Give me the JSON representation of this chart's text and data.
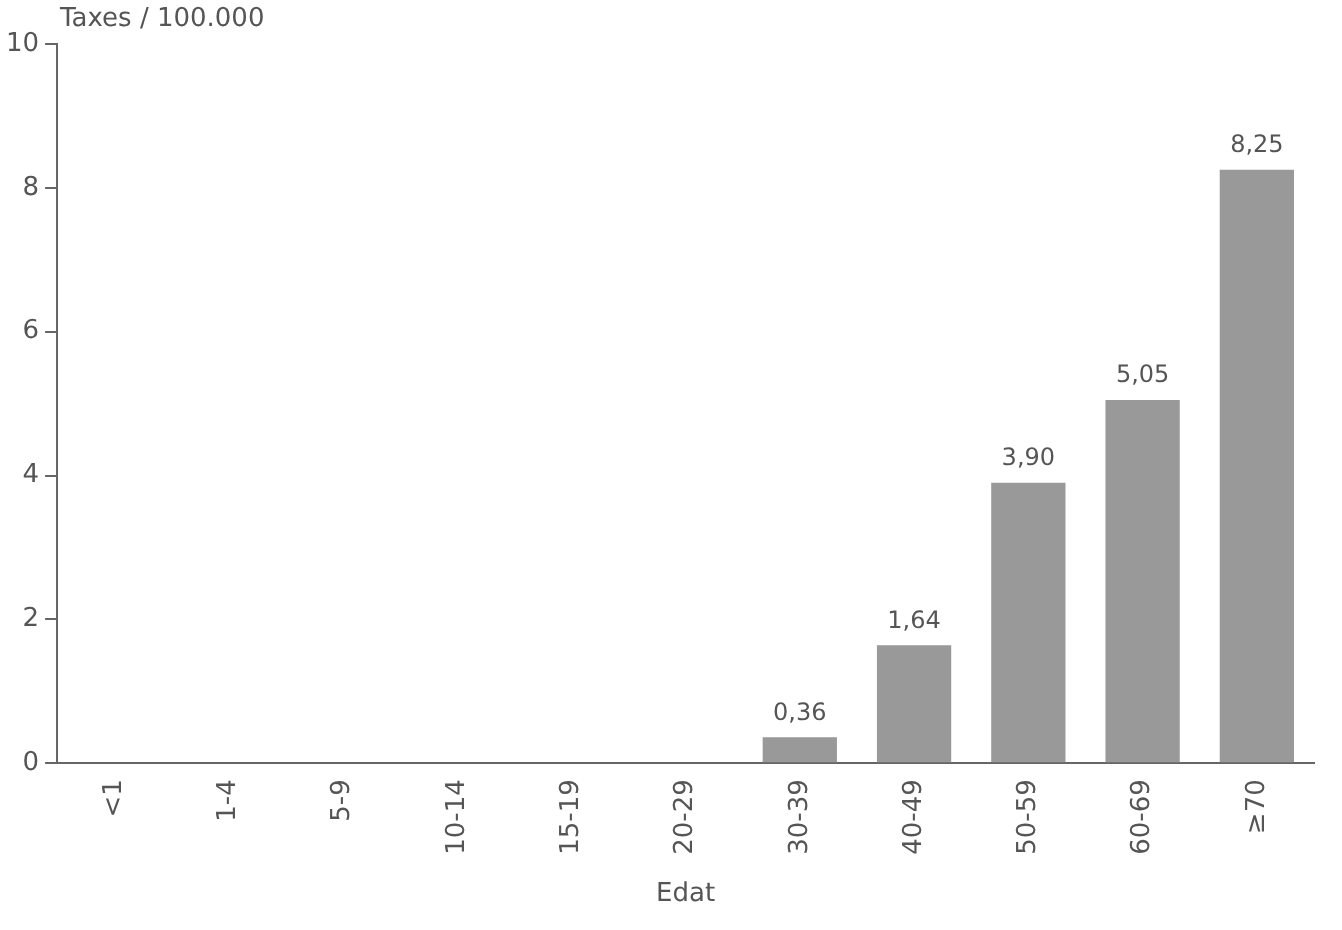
{
  "chart_data": {
    "type": "bar",
    "ylabel": "Taxes / 100.000",
    "xlabel": "Edat",
    "categories": [
      "<1",
      "1-4",
      "5-9",
      "10-14",
      "15-19",
      "20-29",
      "30-39",
      "40-49",
      "50-59",
      "60-69",
      "≥70"
    ],
    "values": [
      0,
      0,
      0,
      0,
      0,
      0,
      0.36,
      1.64,
      3.9,
      5.05,
      8.25
    ],
    "value_labels": [
      null,
      null,
      null,
      null,
      null,
      null,
      "0,36",
      "1,64",
      "3,90",
      "5,05",
      "8,25"
    ],
    "color": "#999999",
    "ylim": [
      0,
      10
    ],
    "yticks": [
      0,
      2,
      4,
      6,
      8,
      10
    ],
    "grid": false,
    "legend": false
  }
}
